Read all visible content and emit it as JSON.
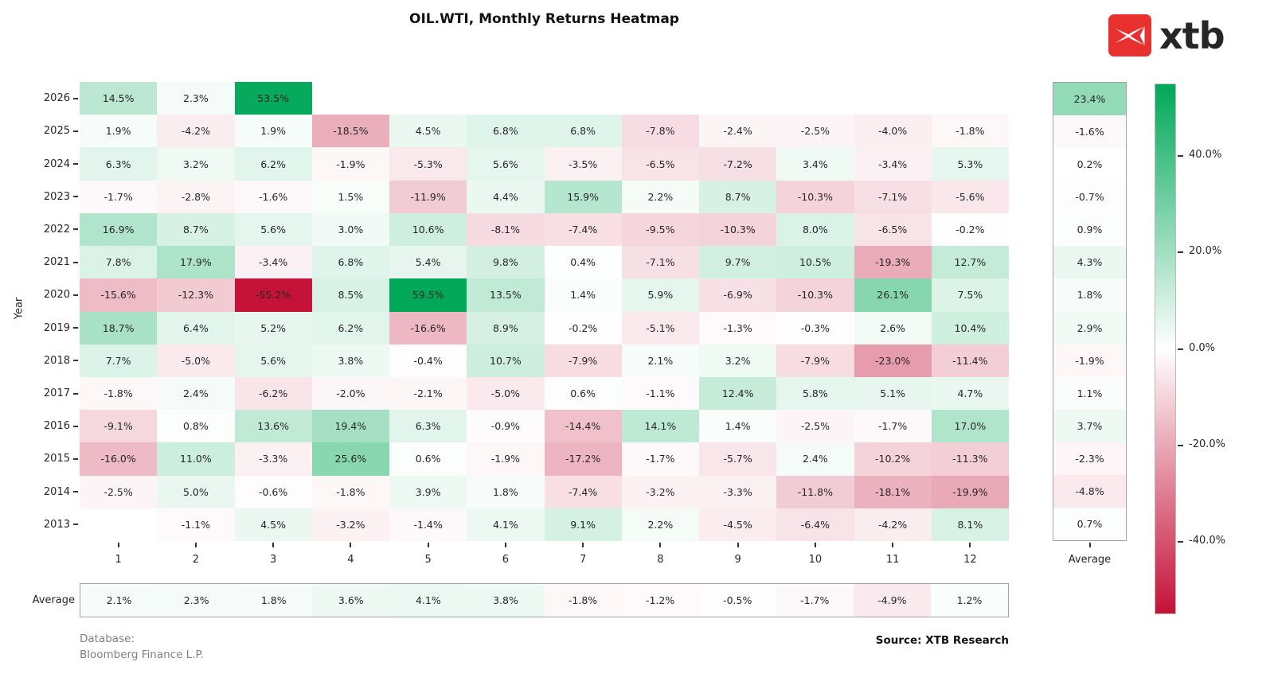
{
  "title": "OIL.WTI, Monthly Returns Heatmap",
  "logo": {
    "brand_text": "xtb",
    "mark_color": "#e8312f"
  },
  "axes": {
    "y_label": "Year",
    "avg_col_label": "Average",
    "avg_row_label": "Average"
  },
  "footer": {
    "database_line1": "Database:",
    "database_line2": "Bloomberg Finance L.P.",
    "source": "Source: XTB Research"
  },
  "chart_data": {
    "type": "heatmap",
    "title": "OIL.WTI, Monthly Returns Heatmap",
    "xlabel": "",
    "ylabel": "Year",
    "rows": [
      "2026",
      "2025",
      "2024",
      "2023",
      "2022",
      "2021",
      "2020",
      "2019",
      "2018",
      "2017",
      "2016",
      "2015",
      "2014",
      "2013"
    ],
    "columns": [
      "1",
      "2",
      "3",
      "4",
      "5",
      "6",
      "7",
      "8",
      "9",
      "10",
      "11",
      "12"
    ],
    "values_pct": [
      [
        14.5,
        2.3,
        53.5,
        null,
        null,
        null,
        null,
        null,
        null,
        null,
        null,
        null
      ],
      [
        1.9,
        -4.2,
        1.9,
        -18.5,
        4.5,
        6.8,
        6.8,
        -7.8,
        -2.4,
        -2.5,
        -4.0,
        -1.8
      ],
      [
        6.3,
        3.2,
        6.2,
        -1.9,
        -5.3,
        5.6,
        -3.5,
        -6.5,
        -7.2,
        3.4,
        -3.4,
        5.3
      ],
      [
        -1.7,
        -2.8,
        -1.6,
        1.5,
        -11.9,
        4.4,
        15.9,
        2.2,
        8.7,
        -10.3,
        -7.1,
        -5.6
      ],
      [
        16.9,
        8.7,
        5.6,
        3.0,
        10.6,
        -8.1,
        -7.4,
        -9.5,
        -10.3,
        8.0,
        -6.5,
        -0.2
      ],
      [
        7.8,
        17.9,
        -3.4,
        6.8,
        5.4,
        9.8,
        0.4,
        -7.1,
        9.7,
        10.5,
        -19.3,
        12.7
      ],
      [
        -15.6,
        -12.3,
        -55.2,
        8.5,
        59.5,
        13.5,
        1.4,
        5.9,
        -6.9,
        -10.3,
        26.1,
        7.5
      ],
      [
        18.7,
        6.4,
        5.2,
        6.2,
        -16.6,
        8.9,
        -0.2,
        -5.1,
        -1.3,
        -0.3,
        2.6,
        10.4
      ],
      [
        7.7,
        -5.0,
        5.6,
        3.8,
        -0.4,
        10.7,
        -7.9,
        2.1,
        3.2,
        -7.9,
        -23.0,
        -11.4
      ],
      [
        -1.8,
        2.4,
        -6.2,
        -2.0,
        -2.1,
        -5.0,
        0.6,
        -1.1,
        12.4,
        5.8,
        5.1,
        4.7
      ],
      [
        -9.1,
        0.8,
        13.6,
        19.4,
        6.3,
        -0.9,
        -14.4,
        14.1,
        1.4,
        -2.5,
        -1.7,
        17.0
      ],
      [
        -16.0,
        11.0,
        -3.3,
        25.6,
        0.6,
        -1.9,
        -17.2,
        -1.7,
        -5.7,
        2.4,
        -10.2,
        -11.3
      ],
      [
        -2.5,
        5.0,
        -0.6,
        -1.8,
        3.9,
        1.8,
        -7.4,
        -3.2,
        -3.3,
        -11.8,
        -18.1,
        -19.9
      ],
      [
        null,
        -1.1,
        4.5,
        -3.2,
        -1.4,
        4.1,
        9.1,
        2.2,
        -4.5,
        -6.4,
        -4.2,
        8.1
      ]
    ],
    "row_averages_pct": [
      23.4,
      -1.6,
      0.2,
      -0.7,
      0.9,
      4.3,
      1.8,
      2.9,
      -1.9,
      1.1,
      3.7,
      -2.3,
      -4.8,
      0.7
    ],
    "column_averages_pct": [
      2.1,
      2.3,
      1.8,
      3.6,
      4.1,
      3.8,
      -1.8,
      -1.2,
      -0.5,
      -1.7,
      -4.9,
      1.2
    ],
    "colorbar": {
      "tick_values": [
        40,
        20,
        0,
        -20,
        -40
      ],
      "tick_labels": [
        "40.0%",
        "20.0%",
        "0.0%",
        "-20.0%",
        "-40.0%"
      ],
      "vmin": -55,
      "vmax": 55,
      "positive_color": "#00a858",
      "negative_color": "#c41238",
      "zero_color": "#ffffff"
    },
    "legend_position": "right",
    "grid": false
  }
}
